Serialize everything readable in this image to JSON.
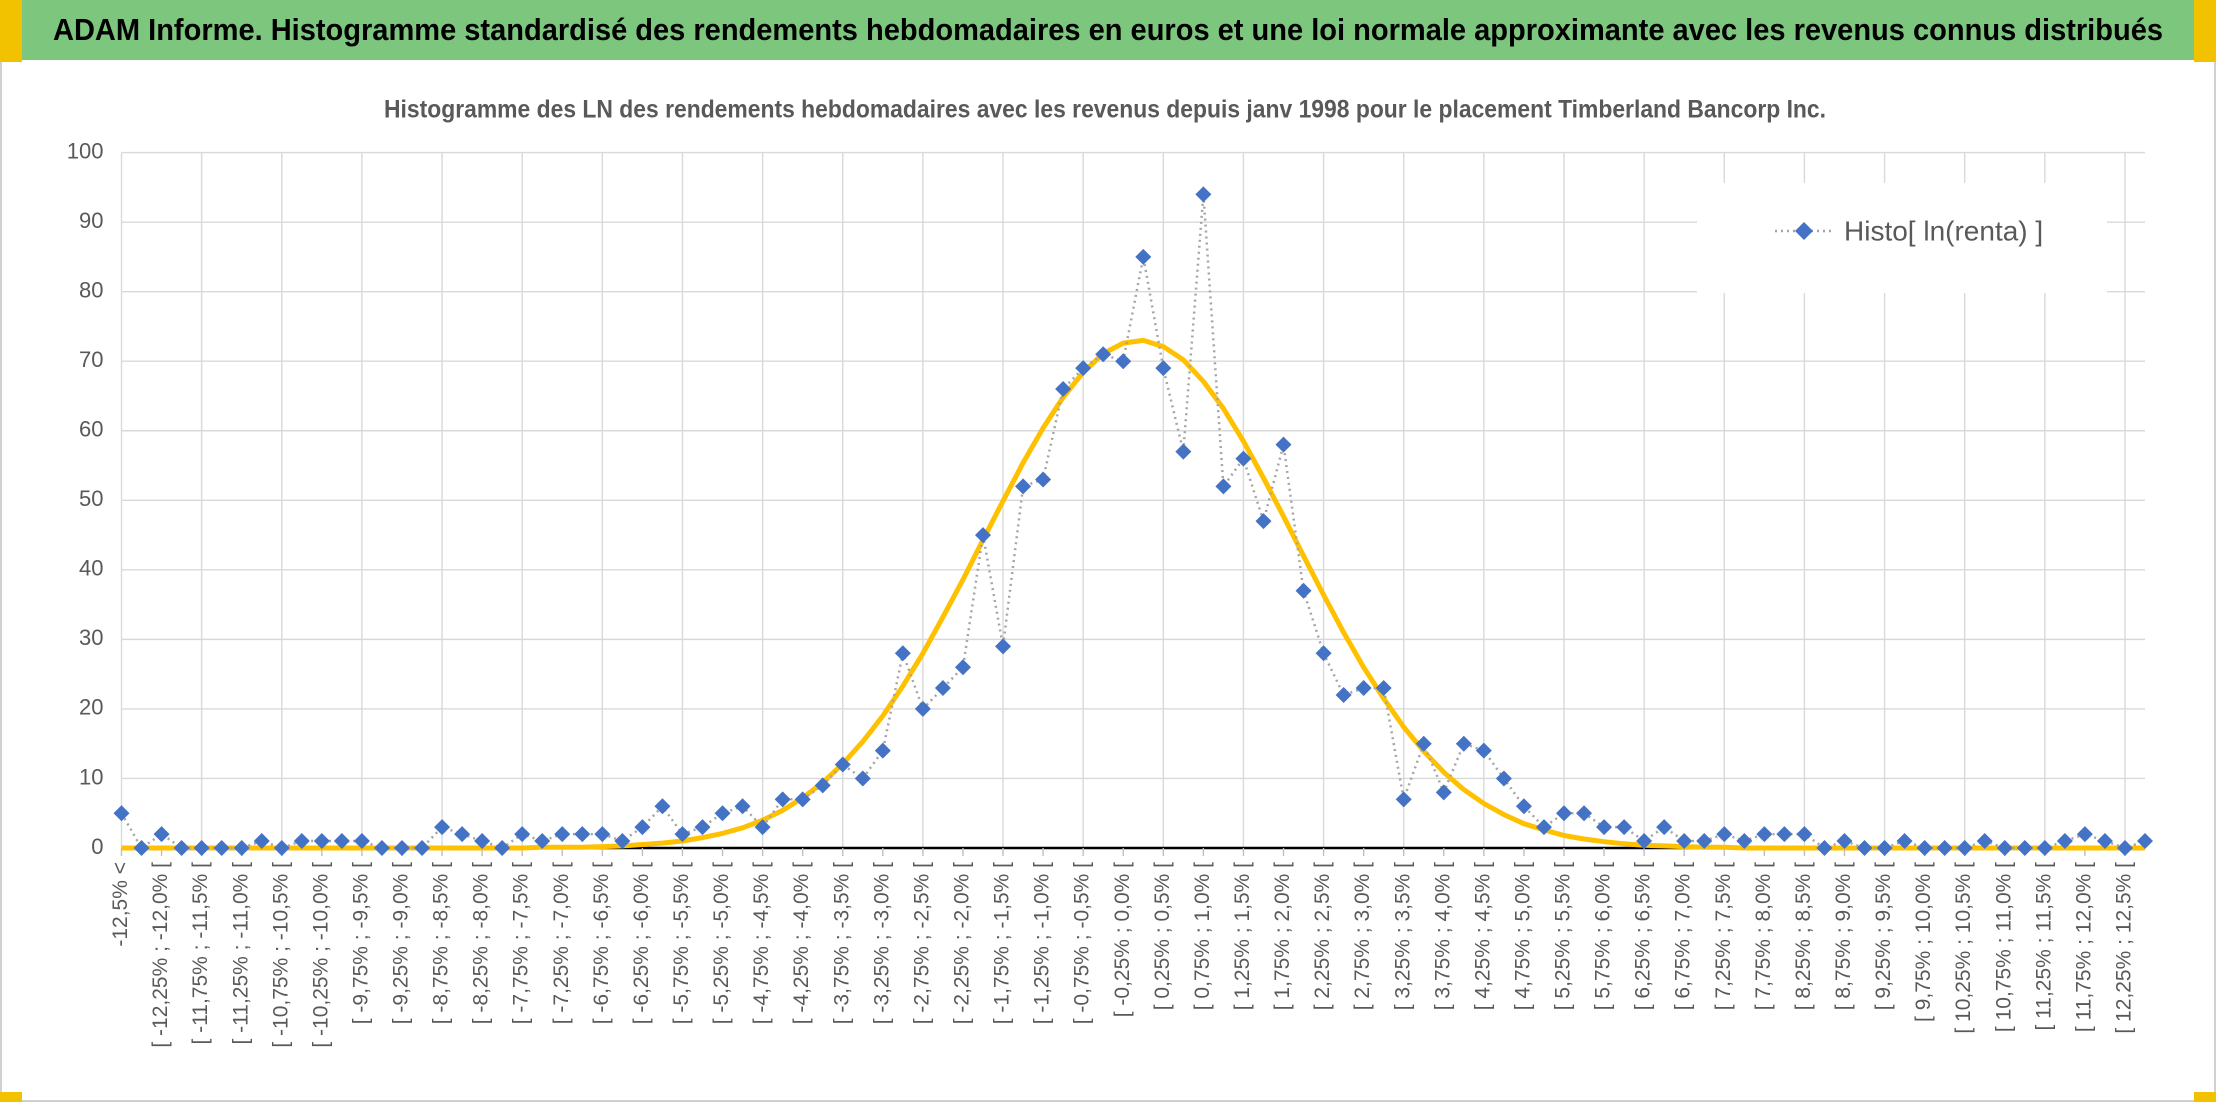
{
  "header": {
    "title": "ADAM Informe. Histogramme standardisé des rendements hebdomadaires en euros et une loi normale approximante avec les revenus connus distribués"
  },
  "chart_data": {
    "type": "line",
    "title": "Histogramme des LN des rendements hebdomadaires avec les revenus depuis janv 1998 pour le placement Timberland Bancorp Inc.",
    "categories": [
      "-12,5% <",
      null,
      "[ -12,25% ; -12,0% [",
      null,
      "[ -11,75% ; -11,5% [",
      null,
      "[ -11,25% ; -11,0% [",
      null,
      "[ -10,75% ; -10,5% [",
      null,
      "[ -10,25% ; -10,0% [",
      null,
      "[ -9,75% ; -9,5% [",
      null,
      "[ -9,25% ; -9,0% [",
      null,
      "[ -8,75% ; -8,5% [",
      null,
      "[ -8,25% ; -8,0% [",
      null,
      "[ -7,75% ; -7,5% [",
      null,
      "[ -7,25% ; -7,0% [",
      null,
      "[ -6,75% ; -6,5% [",
      null,
      "[ -6,25% ; -6,0% [",
      null,
      "[ -5,75% ; -5,5% [",
      null,
      "[ -5,25% ; -5,0% [",
      null,
      "[ -4,75% ; -4,5% [",
      null,
      "[ -4,25% ; -4,0% [",
      null,
      "[ -3,75% ; -3,5% [",
      null,
      "[ -3,25% ; -3,0% [",
      null,
      "[ -2,75% ; -2,5% [",
      null,
      "[ -2,25% ; -2,0% [",
      null,
      "[ -1,75% ; -1,5% [",
      null,
      "[ -1,25% ; -1,0% [",
      null,
      "[ -0,75% ; -0,5% [",
      null,
      "[ -0,25% ; 0,0% [",
      null,
      "[ 0,25% ; 0,5% [",
      null,
      "[ 0,75% ; 1,0% [",
      null,
      "[ 1,25% ; 1,5% [",
      null,
      "[ 1,75% ; 2,0% [",
      null,
      "[ 2,25% ; 2,5% [",
      null,
      "[ 2,75% ; 3,0% [",
      null,
      "[ 3,25% ; 3,5% [",
      null,
      "[ 3,75% ; 4,0% [",
      null,
      "[ 4,25% ; 4,5% [",
      null,
      "[ 4,75% ; 5,0% [",
      null,
      "[ 5,25% ; 5,5% [",
      null,
      "[ 5,75% ; 6,0% [",
      null,
      "[ 6,25% ; 6,5% [",
      null,
      "[ 6,75% ; 7,0% [",
      null,
      "[ 7,25% ; 7,5% [",
      null,
      "[ 7,75% ; 8,0% [",
      null,
      "[ 8,25% ; 8,5% [",
      null,
      "[ 8,75% ; 9,0% [",
      null,
      "[ 9,25% ; 9,5% [",
      null,
      "[ 9,75% ; 10,0% [",
      null,
      "[ 10,25% ; 10,5% [",
      null,
      "[ 10,75% ; 11,0% [",
      null,
      "[ 11,25% ; 11,5% [",
      null,
      "[ 11,75% ; 12,0% [",
      null,
      "[ 12,25% ; 12,5% [",
      null
    ],
    "series": [
      {
        "name": "Histo[ ln(renta) ]",
        "color": "#4472c4",
        "line_color": "#a5a5a5",
        "values": [
          5,
          0,
          2,
          0,
          0,
          0,
          0,
          1,
          0,
          1,
          1,
          1,
          1,
          0,
          0,
          0,
          3,
          2,
          1,
          0,
          2,
          1,
          2,
          2,
          2,
          1,
          3,
          6,
          2,
          3,
          5,
          6,
          3,
          7,
          7,
          9,
          12,
          10,
          14,
          28,
          20,
          23,
          26,
          45,
          29,
          52,
          53,
          66,
          69,
          71,
          70,
          85,
          69,
          57,
          94,
          52,
          56,
          47,
          58,
          37,
          28,
          22,
          23,
          23,
          7,
          15,
          8,
          15,
          14,
          10,
          6,
          3,
          5,
          5,
          3,
          3,
          1,
          3,
          1,
          1,
          2,
          1,
          2,
          2,
          2,
          0,
          1,
          0,
          0,
          1,
          0,
          0,
          0,
          1,
          0,
          0,
          0,
          1,
          2,
          1,
          0,
          1
        ]
      },
      {
        "color": "#ffc000",
        "values": [
          0,
          0,
          0,
          0,
          0,
          0,
          0,
          0,
          0,
          0,
          0,
          0,
          0,
          0,
          0,
          0,
          0,
          0,
          0,
          0,
          0,
          0.1,
          0.1,
          0.1,
          0.2,
          0.3,
          0.5,
          0.7,
          1.0,
          1.5,
          2.1,
          2.9,
          4.0,
          5.4,
          7.2,
          9.4,
          12.1,
          15.3,
          19.0,
          23.3,
          28.0,
          33.2,
          38.6,
          44.3,
          49.9,
          55.4,
          60.4,
          64.8,
          68.4,
          71.1,
          72.6,
          73.0,
          72.1,
          70.2,
          67.1,
          63.2,
          58.5,
          53.2,
          47.7,
          42.0,
          36.4,
          31.0,
          26.0,
          21.5,
          17.4,
          13.9,
          10.9,
          8.4,
          6.4,
          4.8,
          3.5,
          2.6,
          1.8,
          1.3,
          0.9,
          0.6,
          0.4,
          0.3,
          0.2,
          0.1,
          0.1,
          0,
          0,
          0,
          0,
          0,
          0,
          0,
          0,
          0,
          0,
          0,
          0,
          0,
          0,
          0,
          0,
          0,
          0,
          0,
          0,
          0
        ]
      }
    ],
    "ylim": [
      0,
      100
    ],
    "yticks": [
      0,
      10,
      20,
      30,
      40,
      50,
      60,
      70,
      80,
      90,
      100
    ],
    "grid": true,
    "legend": "top-right"
  }
}
